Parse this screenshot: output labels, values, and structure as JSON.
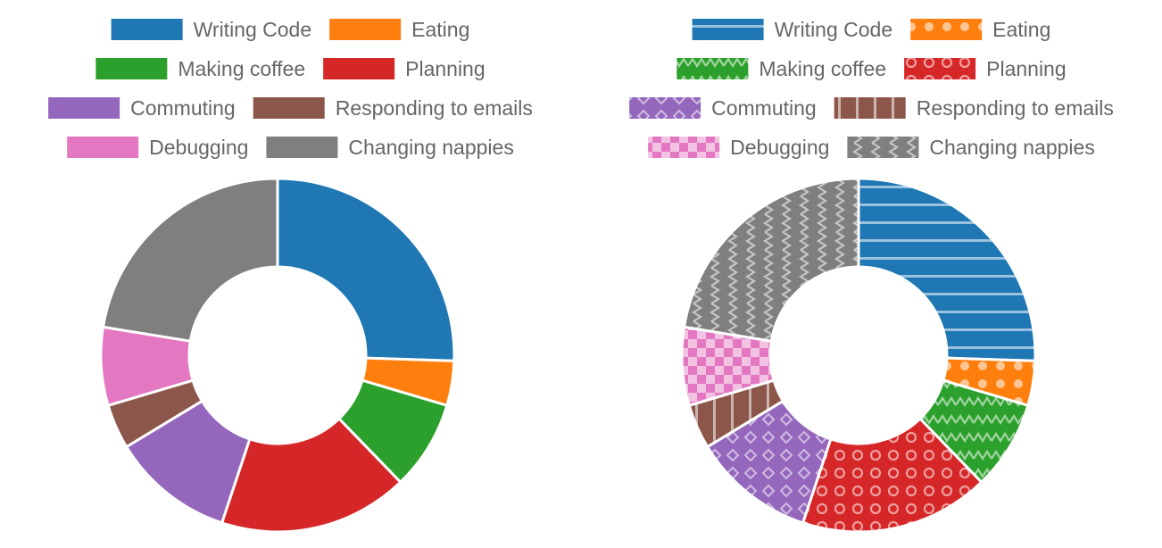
{
  "chart_data": [
    {
      "type": "pie",
      "style": "doughnut",
      "fill": "solid",
      "legend": "top",
      "categories": [
        "Writing Code",
        "Eating",
        "Making coffee",
        "Planning",
        "Commuting",
        "Responding to emails",
        "Debugging",
        "Changing nappies"
      ],
      "values": [
        25,
        4,
        8,
        17,
        11,
        4,
        7,
        22
      ],
      "colors": [
        "#1f77b4",
        "#ff7f0e",
        "#2ca02c",
        "#d62728",
        "#9467bd",
        "#8c564b",
        "#e377c2",
        "#7f7f7f"
      ],
      "patterns": []
    },
    {
      "type": "pie",
      "style": "doughnut",
      "fill": "patterned",
      "legend": "top",
      "categories": [
        "Writing Code",
        "Eating",
        "Making coffee",
        "Planning",
        "Commuting",
        "Responding to emails",
        "Debugging",
        "Changing nappies"
      ],
      "values": [
        25,
        4,
        8,
        17,
        11,
        4,
        7,
        22
      ],
      "colors": [
        "#1f77b4",
        "#ff7f0e",
        "#2ca02c",
        "#d62728",
        "#9467bd",
        "#8c564b",
        "#e377c2",
        "#7f7f7f"
      ],
      "patterns": [
        "horizontal-lines",
        "dots",
        "zigzag",
        "rings",
        "diamonds",
        "vertical-lines",
        "checkerboard",
        "zigzag-vertical"
      ]
    }
  ]
}
